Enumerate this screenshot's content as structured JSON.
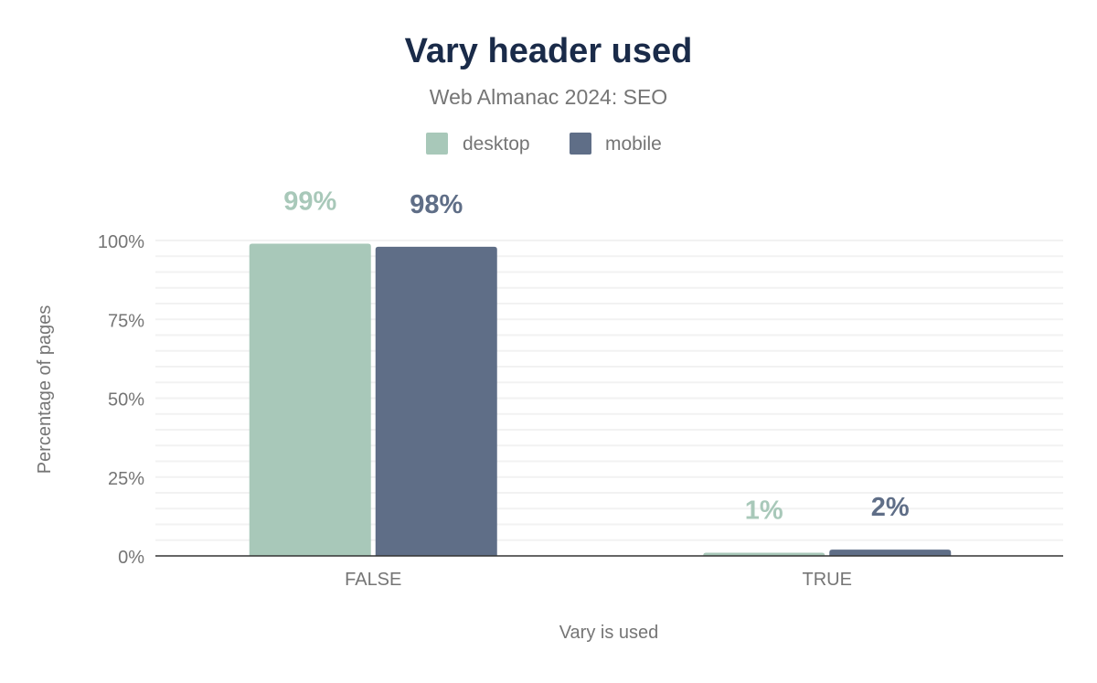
{
  "chart_data": {
    "type": "bar",
    "title": "Vary header used",
    "subtitle": "Web Almanac 2024: SEO",
    "xlabel": "Vary is used",
    "ylabel": "Percentage of pages",
    "categories": [
      "FALSE",
      "TRUE"
    ],
    "series": [
      {
        "name": "desktop",
        "color": "#a8c8b9",
        "values": [
          99,
          1
        ],
        "labels": [
          "99%",
          "1%"
        ]
      },
      {
        "name": "mobile",
        "color": "#5f6e87",
        "values": [
          98,
          2
        ],
        "labels": [
          "98%",
          "2%"
        ]
      }
    ],
    "ylim": [
      0,
      100
    ],
    "yticks": [
      0,
      25,
      50,
      75,
      100
    ],
    "ytick_labels": [
      "0%",
      "25%",
      "50%",
      "75%",
      "100%"
    ],
    "grid": true,
    "legend": "top-center",
    "title_color": "#1a2b49"
  }
}
